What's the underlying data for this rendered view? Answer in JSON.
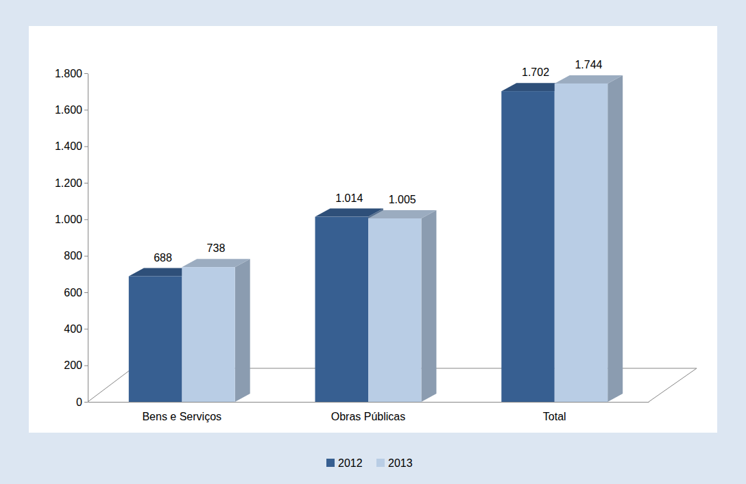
{
  "chart_data": {
    "type": "bar",
    "categories": [
      "Bens e Serviços",
      "Obras Públicas",
      "Total"
    ],
    "series": [
      {
        "name": "2012",
        "color": "#375f91",
        "values": [
          688,
          1014,
          1702
        ],
        "value_labels": [
          "688",
          "1.014",
          "1.702"
        ]
      },
      {
        "name": "2013",
        "color": "#b9cde5",
        "values": [
          738,
          1005,
          1744
        ],
        "value_labels": [
          "738",
          "1.005",
          "1.744"
        ]
      }
    ],
    "ylim": [
      0,
      1800
    ],
    "yticks": [
      0,
      200,
      400,
      600,
      800,
      {
        "value": 1000,
        "label": "1.000"
      },
      {
        "value": 1200,
        "label": "1.200"
      },
      {
        "value": 1400,
        "label": "1.400"
      },
      {
        "value": 1600,
        "label": "1.600"
      },
      {
        "value": 1800,
        "label": "1.800"
      }
    ],
    "data_labels": true,
    "legend": "bottom",
    "grid": false
  }
}
